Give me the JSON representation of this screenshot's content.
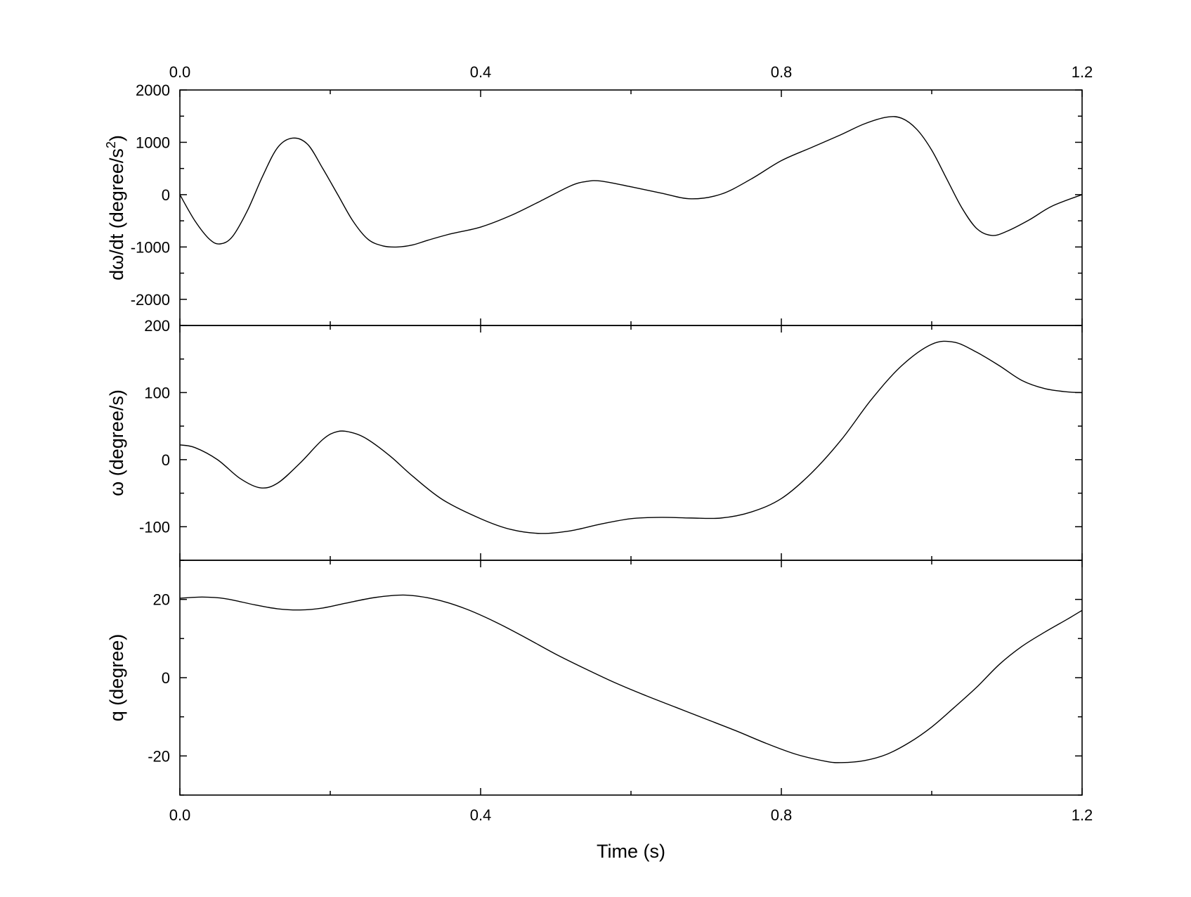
{
  "chart_data": [
    {
      "type": "line",
      "panel": "top",
      "ylabel": "dω/dt (degree/s²)",
      "ylabel_parts": {
        "main": "dω/dt (degree/s",
        "sup": "2",
        "tail": ")"
      },
      "xlim": [
        0,
        1.2
      ],
      "ylim": [
        -2500,
        2000
      ],
      "yticks": [
        2000,
        1000,
        0,
        -1000,
        -2000
      ],
      "ytick_labels": [
        "2000",
        "1000",
        "0",
        "-1000",
        "-2000"
      ],
      "xticks_top": [
        0,
        0.4,
        0.8,
        1.2
      ],
      "xtick_labels_top": [
        "0.0",
        "0.4",
        "0.8",
        "1.2"
      ],
      "series": [
        {
          "x": [
            0,
            0.02,
            0.04,
            0.054,
            0.07,
            0.09,
            0.11,
            0.13,
            0.15,
            0.17,
            0.19,
            0.21,
            0.23,
            0.25,
            0.27,
            0.29,
            0.31,
            0.33,
            0.36,
            0.4,
            0.44,
            0.48,
            0.52,
            0.54,
            0.56,
            0.6,
            0.64,
            0.68,
            0.72,
            0.76,
            0.8,
            0.84,
            0.88,
            0.91,
            0.94,
            0.96,
            0.98,
            1.0,
            1.02,
            1.04,
            1.06,
            1.08,
            1.1,
            1.13,
            1.16,
            1.2
          ],
          "y": [
            0,
            -500,
            -860,
            -940,
            -800,
            -300,
            350,
            900,
            1080,
            960,
            500,
            0,
            -500,
            -850,
            -980,
            -1000,
            -960,
            -870,
            -750,
            -620,
            -400,
            -120,
            170,
            250,
            260,
            150,
            30,
            -80,
            10,
            300,
            650,
            900,
            1150,
            1350,
            1480,
            1460,
            1250,
            850,
            300,
            -250,
            -650,
            -780,
            -700,
            -480,
            -220,
            0
          ]
        }
      ]
    },
    {
      "type": "line",
      "panel": "middle",
      "ylabel": "ω (degree/s)",
      "xlim": [
        0,
        1.2
      ],
      "ylim": [
        -150,
        200
      ],
      "yticks": [
        200,
        100,
        0,
        -100
      ],
      "ytick_labels": [
        "200",
        "100",
        "0",
        "-100"
      ],
      "series": [
        {
          "x": [
            0,
            0.02,
            0.05,
            0.08,
            0.107,
            0.13,
            0.16,
            0.19,
            0.21,
            0.23,
            0.25,
            0.28,
            0.31,
            0.35,
            0.4,
            0.44,
            0.48,
            0.52,
            0.56,
            0.6,
            0.64,
            0.68,
            0.72,
            0.76,
            0.8,
            0.84,
            0.88,
            0.92,
            0.96,
            1.0,
            1.03,
            1.06,
            1.09,
            1.12,
            1.15,
            1.18,
            1.2
          ],
          "y": [
            22,
            18,
            0,
            -28,
            -42,
            -35,
            -5,
            30,
            42,
            40,
            30,
            5,
            -25,
            -60,
            -88,
            -104,
            -110,
            -106,
            -96,
            -88,
            -86,
            -87,
            -87,
            -78,
            -58,
            -20,
            30,
            90,
            140,
            172,
            175,
            160,
            140,
            118,
            106,
            101,
            100
          ]
        }
      ]
    },
    {
      "type": "line",
      "panel": "bottom",
      "ylabel": "q (degree)",
      "xlabel": "Time (s)",
      "xlim": [
        0,
        1.2
      ],
      "ylim": [
        -30,
        30
      ],
      "yticks": [
        20,
        0,
        -20
      ],
      "ytick_labels": [
        "20",
        "0",
        "-20"
      ],
      "xticks": [
        0,
        0.4,
        0.8,
        1.2
      ],
      "xtick_labels": [
        "0.0",
        "0.4",
        "0.8",
        "1.2"
      ],
      "series": [
        {
          "x": [
            0,
            0.03,
            0.06,
            0.1,
            0.13,
            0.16,
            0.19,
            0.22,
            0.26,
            0.3,
            0.34,
            0.38,
            0.42,
            0.46,
            0.5,
            0.54,
            0.58,
            0.62,
            0.66,
            0.7,
            0.74,
            0.78,
            0.82,
            0.86,
            0.88,
            0.91,
            0.94,
            0.97,
            1.0,
            1.03,
            1.06,
            1.09,
            1.12,
            1.15,
            1.18,
            1.2
          ],
          "y": [
            20.3,
            20.6,
            20.2,
            18.6,
            17.6,
            17.3,
            17.8,
            19.0,
            20.5,
            21.1,
            20.0,
            17.6,
            14.2,
            10.2,
            6.0,
            2.2,
            -1.4,
            -4.6,
            -7.6,
            -10.6,
            -13.6,
            -16.8,
            -19.6,
            -21.4,
            -21.7,
            -21.2,
            -19.6,
            -16.6,
            -12.6,
            -7.6,
            -2.4,
            3.4,
            8.0,
            11.6,
            14.9,
            17.2
          ]
        }
      ]
    }
  ]
}
